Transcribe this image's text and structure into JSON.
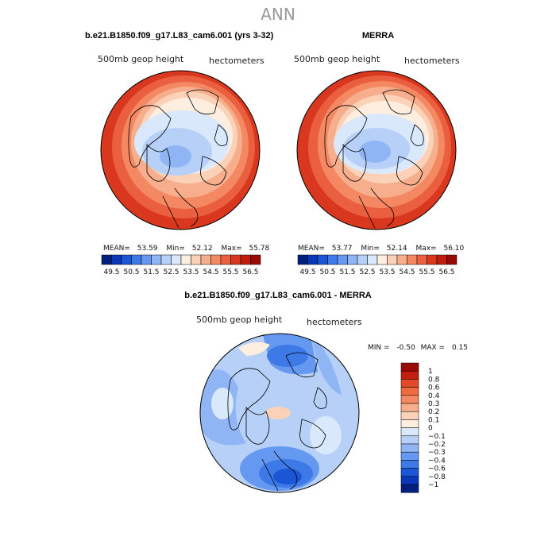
{
  "page_title": "ANN",
  "panels": {
    "model": {
      "header": "b.e21.B1850.f09_g17.L83_cam6.001 (yrs 3-32)",
      "var_label": "500mb geop height",
      "units": "hectometers",
      "stats": {
        "mean_label": "MEAN=",
        "mean": "53.59",
        "min_label": "Min=",
        "min": "52.12",
        "max_label": "Max=",
        "max": "55.78"
      }
    },
    "obs": {
      "header": "MERRA",
      "var_label": "500mb geop height",
      "units": "hectometers",
      "stats": {
        "mean_label": "MEAN=",
        "mean": "53.77",
        "min_label": "Min=",
        "min": "52.14",
        "max_label": "Max=",
        "max": "56.10"
      }
    },
    "diff": {
      "header": "b.e21.B1850.f09_g17.L83_cam6.001 - MERRA",
      "var_label": "500mb geop height",
      "units": "hectometers",
      "stats": {
        "min_label": "MIN =",
        "min": "-0.50",
        "max_label": "MAX =",
        "max": "0.15"
      }
    }
  },
  "chart_data": [
    {
      "type": "heatmap",
      "title": "b.e21.B1850.f09_g17.L83_cam6.001 (yrs 3-32)",
      "variable": "500mb geop height",
      "units": "hectometers",
      "projection": "north polar stereographic",
      "colorbar_ticks": [
        "49.5",
        "50.5",
        "51.5",
        "52.5",
        "53.5",
        "54.5",
        "55.5",
        "56.5"
      ],
      "colorbar_colors": [
        "#002080",
        "#0a37b8",
        "#1a56d6",
        "#3d7ae8",
        "#6598f0",
        "#8fb5f5",
        "#b6d0f8",
        "#d9e8fb",
        "#fdeee0",
        "#fbd2b8",
        "#f7ae8c",
        "#f38862",
        "#ea5f3f",
        "#d9381f",
        "#be1d10",
        "#9a0a05"
      ],
      "stats": {
        "mean": 53.59,
        "min": 52.12,
        "max": 55.78
      }
    },
    {
      "type": "heatmap",
      "title": "MERRA",
      "variable": "500mb geop height",
      "units": "hectometers",
      "projection": "north polar stereographic",
      "colorbar_ticks": [
        "49.5",
        "50.5",
        "51.5",
        "52.5",
        "53.5",
        "54.5",
        "55.5",
        "56.5"
      ],
      "colorbar_colors": [
        "#002080",
        "#0a37b8",
        "#1a56d6",
        "#3d7ae8",
        "#6598f0",
        "#8fb5f5",
        "#b6d0f8",
        "#d9e8fb",
        "#fdeee0",
        "#fbd2b8",
        "#f7ae8c",
        "#f38862",
        "#ea5f3f",
        "#d9381f",
        "#be1d10",
        "#9a0a05"
      ],
      "stats": {
        "mean": 53.77,
        "min": 52.14,
        "max": 56.1
      }
    },
    {
      "type": "heatmap",
      "title": "b.e21.B1850.f09_g17.L83_cam6.001 - MERRA",
      "variable": "500mb geop height",
      "units": "hectometers",
      "projection": "north polar stereographic",
      "colorbar_ticks": [
        "1",
        "0.8",
        "0.6",
        "0.4",
        "0.3",
        "0.2",
        "0.1",
        "0",
        "−0.1",
        "−0.2",
        "−0.3",
        "−0.4",
        "−0.6",
        "−0.8",
        "−1"
      ],
      "colorbar_colors": [
        "#9a0a05",
        "#c21f10",
        "#e04a28",
        "#f06a40",
        "#f38862",
        "#f7ae8c",
        "#fbd2b8",
        "#fdeee0",
        "#d9e8fb",
        "#b6d0f8",
        "#8fb5f5",
        "#6598f0",
        "#3d7ae8",
        "#1a56d6",
        "#0a37b8",
        "#002080"
      ],
      "stats": {
        "min": -0.5,
        "max": 0.15
      }
    }
  ],
  "palette": {
    "warm": [
      "#fdeee0",
      "#fbd2b8",
      "#f7ae8c",
      "#f38862",
      "#ea5f3f",
      "#d9381f"
    ],
    "cool": [
      "#d9e8fb",
      "#b6d0f8",
      "#8fb5f5",
      "#6598f0",
      "#3d7ae8",
      "#1a56d6",
      "#0a37b8"
    ]
  }
}
